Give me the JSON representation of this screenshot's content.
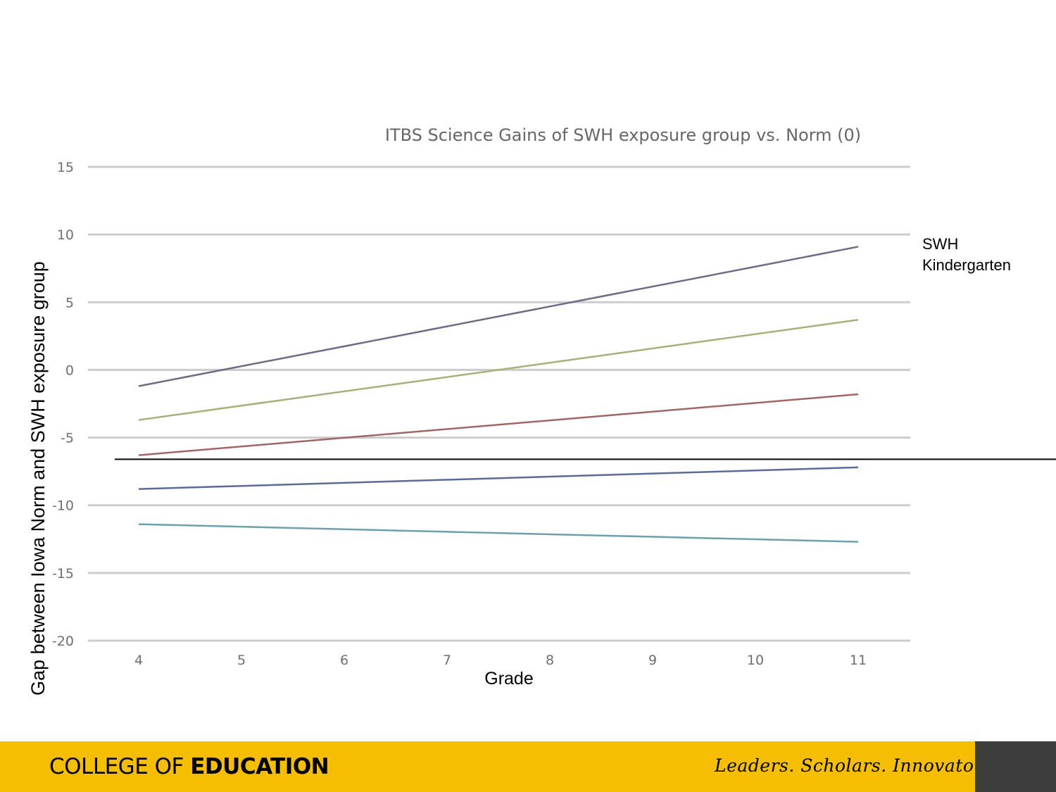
{
  "chart_data": {
    "type": "line",
    "title": "ITBS Science Gains of SWH exposure group vs. Norm (0)",
    "xlabel": "Grade",
    "ylabel": "Gap between Iowa Norm and SWH exposure group",
    "x": [
      4,
      11
    ],
    "xticks": [
      "4",
      "5",
      "6",
      "7",
      "8",
      "9",
      "10",
      "11"
    ],
    "yticks": [
      "15",
      "10",
      "5",
      "0",
      "-5",
      "-10",
      "-15",
      "-20"
    ],
    "xlim": [
      4,
      11
    ],
    "ylim": [
      -20,
      15
    ],
    "grid": true,
    "series": [
      {
        "color": "#6f6a86",
        "values": [
          -1.2,
          9.1
        ]
      },
      {
        "color": "#a7b07a",
        "values": [
          -3.7,
          3.7
        ]
      },
      {
        "color": "#a36666",
        "values": [
          -6.3,
          -1.8
        ]
      },
      {
        "color": "#596b96",
        "values": [
          -8.8,
          -7.2
        ]
      },
      {
        "color": "#6d9fac",
        "values": [
          -11.4,
          -12.7
        ]
      }
    ],
    "reference_line": {
      "y": -6.6
    },
    "annotation": {
      "line1": "SWH",
      "line2": "Kindergarten"
    }
  },
  "footer": {
    "college_light": "COLLEGE OF ",
    "college_bold": "EDUCATION",
    "tagline": "Leaders. Scholars. Innovators."
  },
  "colors": {
    "footer_bg": "#F6BE00",
    "footer_dark": "#3d3d3d",
    "grid": "#cccccc"
  }
}
